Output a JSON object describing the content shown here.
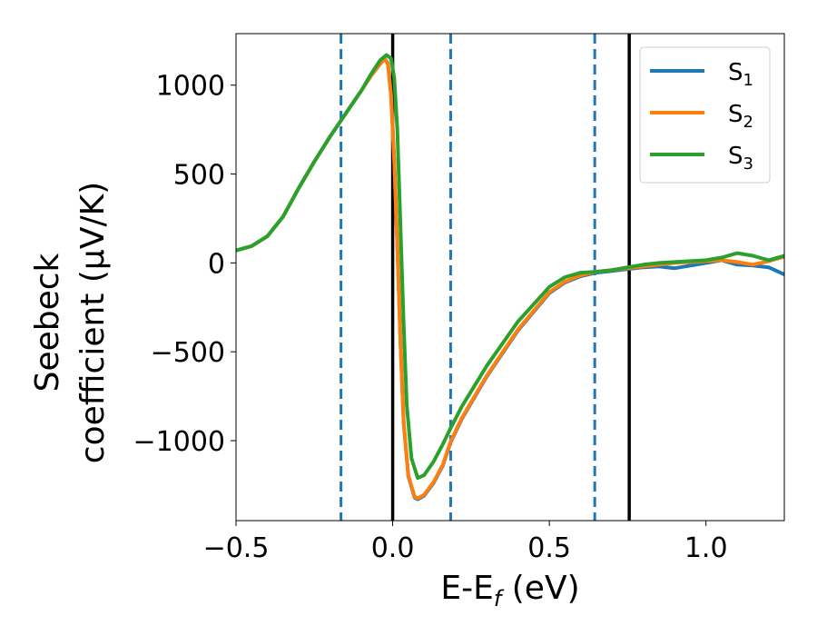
{
  "chart_data": {
    "type": "line",
    "xlabel": {
      "main": "E-E",
      "sub": "f",
      "unit": " (eV)"
    },
    "ylabel": {
      "line1": "Seebeck",
      "line2": "coefficient  (μV/K)"
    },
    "xlim": [
      -0.5,
      1.25
    ],
    "ylim": [
      -1450,
      1290
    ],
    "xticks": [
      -0.5,
      0.0,
      0.5,
      1.0
    ],
    "xtick_labels": [
      "−0.5",
      "0.0",
      "0.5",
      "1.0"
    ],
    "yticks": [
      -1000,
      -500,
      0,
      500,
      1000
    ],
    "ytick_labels": [
      "−1000",
      "−500",
      "0",
      "500",
      "1000"
    ],
    "grid": false,
    "legend_position": "top-right",
    "vlines": [
      {
        "x": -0.165,
        "style": "dashed",
        "color": "#1f77b4"
      },
      {
        "x": 0.0,
        "style": "solid",
        "color": "#000000"
      },
      {
        "x": 0.185,
        "style": "dashed",
        "color": "#1f77b4"
      },
      {
        "x": 0.645,
        "style": "dashed",
        "color": "#1f77b4"
      },
      {
        "x": 0.755,
        "style": "solid",
        "color": "#000000"
      }
    ],
    "series": [
      {
        "name": "S",
        "sub": "1",
        "color": "#1f77b4",
        "points": [
          [
            -0.5,
            70
          ],
          [
            -0.45,
            95
          ],
          [
            -0.4,
            150
          ],
          [
            -0.35,
            260
          ],
          [
            -0.3,
            420
          ],
          [
            -0.25,
            570
          ],
          [
            -0.2,
            710
          ],
          [
            -0.15,
            840
          ],
          [
            -0.1,
            970
          ],
          [
            -0.07,
            1050
          ],
          [
            -0.04,
            1120
          ],
          [
            -0.025,
            1150
          ],
          [
            -0.015,
            1120
          ],
          [
            -0.005,
            950
          ],
          [
            0.005,
            580
          ],
          [
            0.015,
            100
          ],
          [
            0.025,
            -450
          ],
          [
            0.035,
            -900
          ],
          [
            0.05,
            -1200
          ],
          [
            0.07,
            -1320
          ],
          [
            0.08,
            -1330
          ],
          [
            0.1,
            -1310
          ],
          [
            0.13,
            -1240
          ],
          [
            0.16,
            -1140
          ],
          [
            0.185,
            -1010
          ],
          [
            0.22,
            -880
          ],
          [
            0.3,
            -640
          ],
          [
            0.4,
            -380
          ],
          [
            0.5,
            -170
          ],
          [
            0.55,
            -110
          ],
          [
            0.6,
            -75
          ],
          [
            0.65,
            -55
          ],
          [
            0.7,
            -45
          ],
          [
            0.75,
            -35
          ],
          [
            0.8,
            -25
          ],
          [
            0.85,
            -20
          ],
          [
            0.9,
            -30
          ],
          [
            0.95,
            -15
          ],
          [
            1.0,
            0
          ],
          [
            1.05,
            15
          ],
          [
            1.1,
            -10
          ],
          [
            1.15,
            -15
          ],
          [
            1.2,
            -25
          ],
          [
            1.25,
            -65
          ]
        ]
      },
      {
        "name": "S",
        "sub": "2",
        "color": "#ff7f0e",
        "points": [
          [
            -0.5,
            70
          ],
          [
            -0.45,
            95
          ],
          [
            -0.4,
            150
          ],
          [
            -0.35,
            260
          ],
          [
            -0.3,
            420
          ],
          [
            -0.25,
            570
          ],
          [
            -0.2,
            710
          ],
          [
            -0.15,
            840
          ],
          [
            -0.1,
            970
          ],
          [
            -0.07,
            1050
          ],
          [
            -0.04,
            1120
          ],
          [
            -0.025,
            1150
          ],
          [
            -0.015,
            1115
          ],
          [
            -0.005,
            940
          ],
          [
            0.005,
            570
          ],
          [
            0.015,
            90
          ],
          [
            0.025,
            -460
          ],
          [
            0.035,
            -900
          ],
          [
            0.05,
            -1195
          ],
          [
            0.07,
            -1315
          ],
          [
            0.08,
            -1325
          ],
          [
            0.1,
            -1305
          ],
          [
            0.13,
            -1235
          ],
          [
            0.16,
            -1135
          ],
          [
            0.185,
            -1005
          ],
          [
            0.22,
            -875
          ],
          [
            0.3,
            -635
          ],
          [
            0.4,
            -375
          ],
          [
            0.5,
            -165
          ],
          [
            0.55,
            -105
          ],
          [
            0.6,
            -70
          ],
          [
            0.65,
            -50
          ],
          [
            0.7,
            -40
          ],
          [
            0.75,
            -30
          ],
          [
            0.8,
            -20
          ],
          [
            0.85,
            -10
          ],
          [
            0.9,
            0
          ],
          [
            0.95,
            5
          ],
          [
            1.0,
            10
          ],
          [
            1.05,
            15
          ],
          [
            1.1,
            5
          ],
          [
            1.15,
            -10
          ],
          [
            1.2,
            10
          ],
          [
            1.25,
            35
          ]
        ]
      },
      {
        "name": "S",
        "sub": "3",
        "color": "#2ca02c",
        "points": [
          [
            -0.5,
            70
          ],
          [
            -0.45,
            95
          ],
          [
            -0.4,
            150
          ],
          [
            -0.35,
            260
          ],
          [
            -0.3,
            420
          ],
          [
            -0.25,
            570
          ],
          [
            -0.2,
            710
          ],
          [
            -0.15,
            840
          ],
          [
            -0.1,
            970
          ],
          [
            -0.07,
            1060
          ],
          [
            -0.04,
            1140
          ],
          [
            -0.02,
            1170
          ],
          [
            -0.005,
            1150
          ],
          [
            0.005,
            1040
          ],
          [
            0.015,
            750
          ],
          [
            0.025,
            200
          ],
          [
            0.035,
            -350
          ],
          [
            0.045,
            -800
          ],
          [
            0.06,
            -1100
          ],
          [
            0.08,
            -1210
          ],
          [
            0.1,
            -1195
          ],
          [
            0.13,
            -1120
          ],
          [
            0.16,
            -1020
          ],
          [
            0.185,
            -930
          ],
          [
            0.22,
            -810
          ],
          [
            0.3,
            -580
          ],
          [
            0.4,
            -330
          ],
          [
            0.5,
            -135
          ],
          [
            0.55,
            -80
          ],
          [
            0.6,
            -55
          ],
          [
            0.65,
            -50
          ],
          [
            0.7,
            -40
          ],
          [
            0.75,
            -25
          ],
          [
            0.8,
            -10
          ],
          [
            0.85,
            0
          ],
          [
            0.9,
            5
          ],
          [
            0.95,
            10
          ],
          [
            1.0,
            15
          ],
          [
            1.05,
            30
          ],
          [
            1.1,
            55
          ],
          [
            1.15,
            40
          ],
          [
            1.2,
            15
          ],
          [
            1.25,
            40
          ]
        ]
      }
    ]
  }
}
